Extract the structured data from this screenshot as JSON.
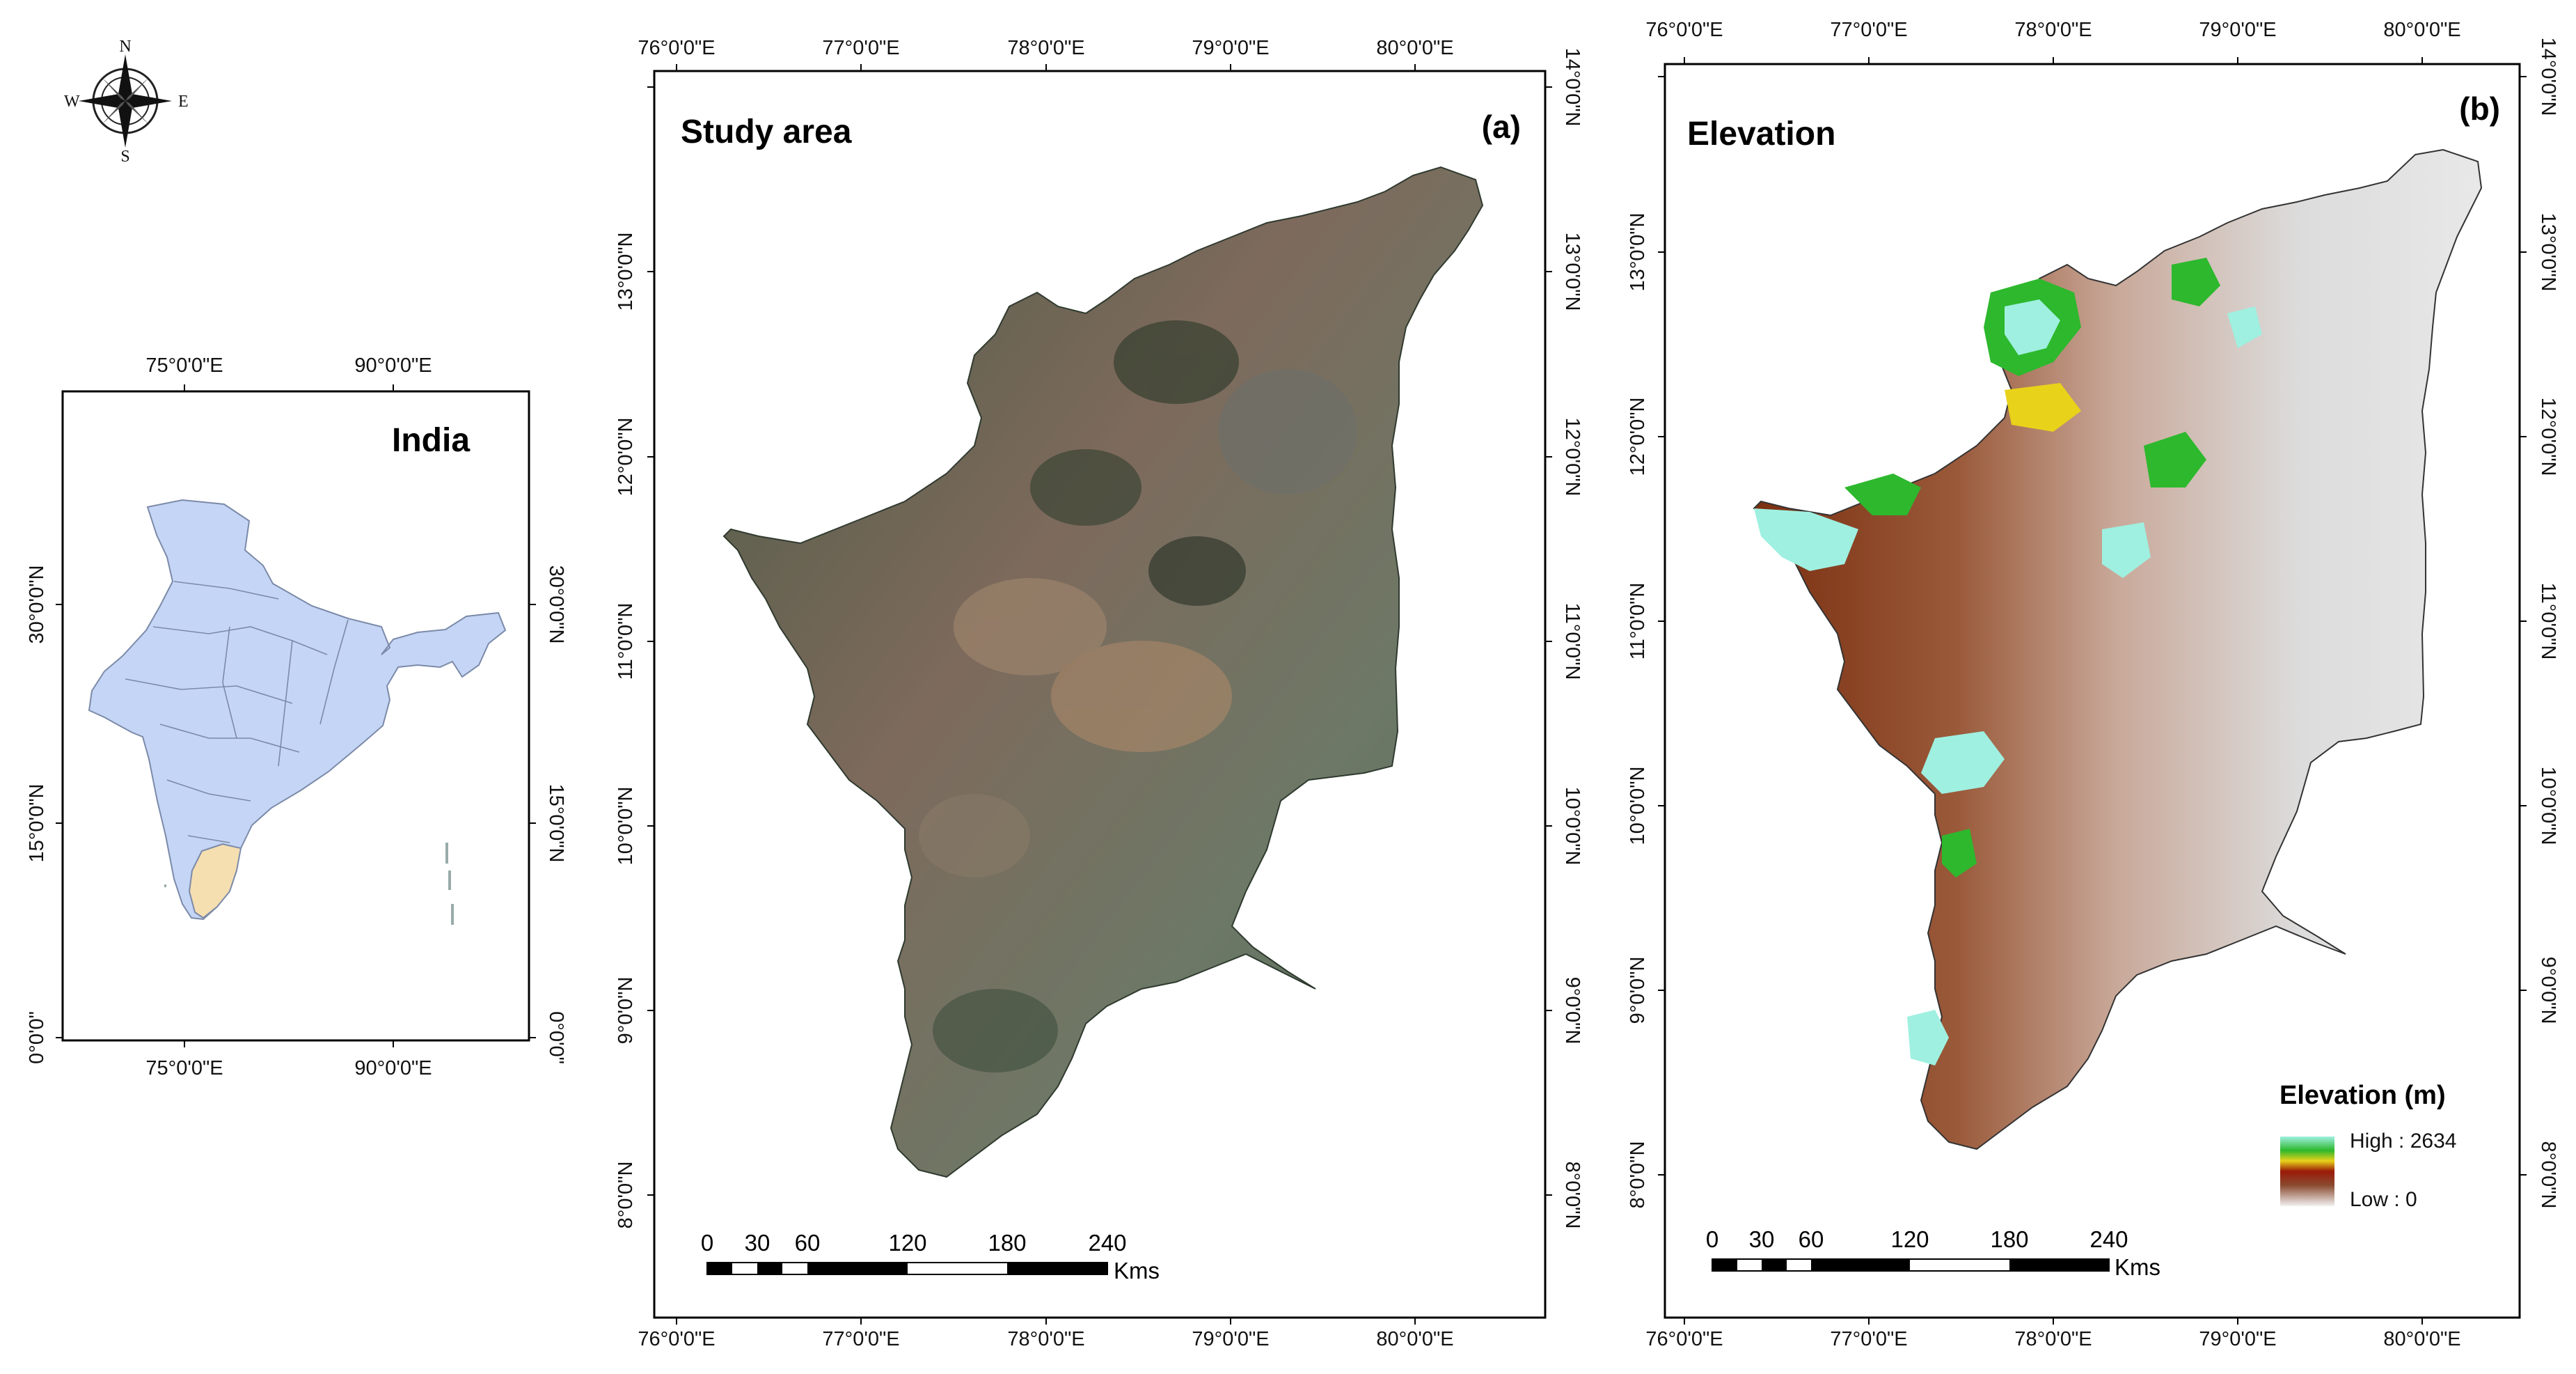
{
  "compass": {
    "n": "N",
    "s": "S",
    "e": "E",
    "w": "W",
    "icon": "compass-rose-icon"
  },
  "india_map": {
    "title": "India",
    "top_ticks": [
      "75°0'0\"E",
      "90°0'0\"E"
    ],
    "bottom_ticks": [
      "75°0'0\"E",
      "90°0'0\"E"
    ],
    "left_ticks": [
      "30°0'0\"N",
      "15°0'0\"N",
      "0°0'0\""
    ],
    "right_ticks": [
      "30°0'0\"N",
      "15°0'0\"N",
      "0°0'0\""
    ],
    "colors": {
      "country": "#c5d5f5",
      "study_area": "#f5deb0"
    }
  },
  "study_area_map": {
    "title": "Study area",
    "label": "(a)",
    "top_ticks": [
      "76°0'0\"E",
      "77°0'0\"E",
      "78°0'0\"E",
      "79°0'0\"E",
      "80°0'0\"E"
    ],
    "bottom_ticks": [
      "76°0'0\"E",
      "77°0'0\"E",
      "78°0'0\"E",
      "79°0'0\"E",
      "80°0'0\"E"
    ],
    "left_ticks": [
      "13°0'0\"N",
      "12°0'0\"N",
      "11°0'0\"N",
      "10°0'0\"N",
      "9°0'0\"N",
      "8°0'0\"N"
    ],
    "right_ticks": [
      "14°0'0\"N",
      "13°0'0\"N",
      "12°0'0\"N",
      "11°0'0\"N",
      "10°0'0\"N",
      "9°0'0\"N",
      "8°0'0\"N"
    ],
    "scale_labels": [
      "0",
      "30",
      "60",
      "120",
      "180",
      "240"
    ],
    "scale_unit": "Kms"
  },
  "elevation_map": {
    "title": "Elevation",
    "label": "(b)",
    "top_ticks": [
      "76°0'0\"E",
      "77°0'0\"E",
      "78°0'0\"E",
      "79°0'0\"E",
      "80°0'0\"E"
    ],
    "bottom_ticks": [
      "76°0'0\"E",
      "77°0'0\"E",
      "78°0'0\"E",
      "79°0'0\"E",
      "80°0'0\"E"
    ],
    "left_ticks": [
      "13°0'0\"N",
      "12°0'0\"N",
      "11°0'0\"N",
      "10°0'0\"N",
      "9°0'0\"N",
      "8°0'0\"N"
    ],
    "right_ticks": [
      "14°0'0\"N",
      "13°0'0\"N",
      "12°0'0\"N",
      "11°0'0\"N",
      "10°0'0\"N",
      "9°0'0\"N",
      "8°0'0\"N"
    ],
    "legend": {
      "title": "Elevation (m)",
      "high": "High : 2634",
      "low": "Low : 0"
    },
    "scale_labels": [
      "0",
      "30",
      "60",
      "120",
      "180",
      "240"
    ],
    "scale_unit": "Kms"
  }
}
